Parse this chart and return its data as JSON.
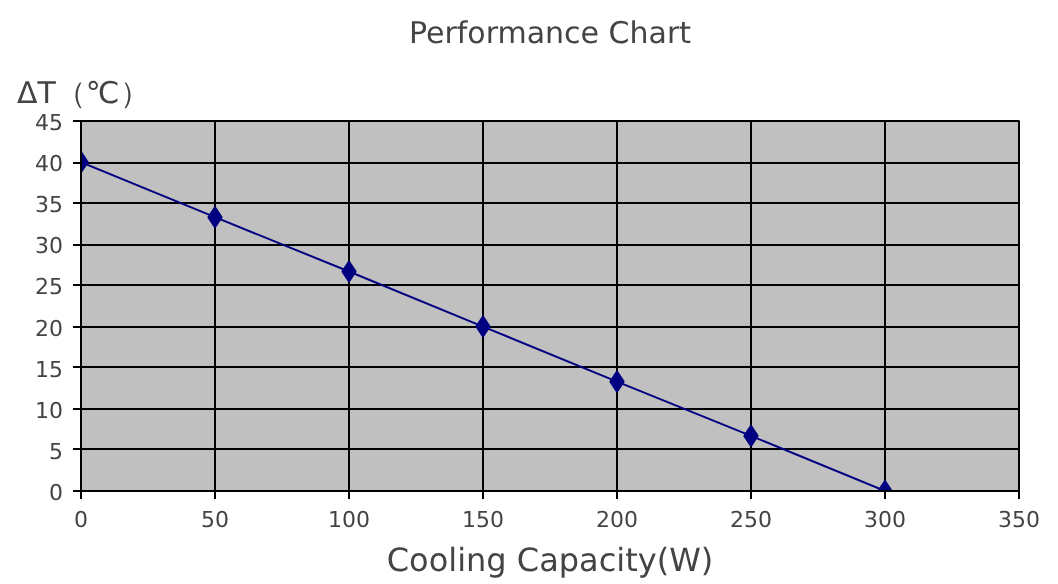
{
  "chart_data": {
    "type": "line",
    "title": "Performance Chart",
    "xlabel": "Cooling Capacity(W)",
    "ylabel": "ΔT（℃）",
    "x": [
      0,
      50,
      100,
      150,
      200,
      250,
      300
    ],
    "series": [
      {
        "color": "#000080",
        "values": [
          40,
          33.3,
          26.7,
          20,
          13.3,
          6.7,
          0
        ]
      }
    ],
    "xlim": [
      0,
      350
    ],
    "xticks": [
      0,
      50,
      100,
      150,
      200,
      250,
      300,
      350
    ],
    "ylim": [
      0,
      45
    ],
    "yticks": [
      0,
      5,
      10,
      15,
      20,
      25,
      30,
      35,
      40,
      45
    ],
    "grid": true,
    "marker": "diamond",
    "line_style": "solid"
  }
}
